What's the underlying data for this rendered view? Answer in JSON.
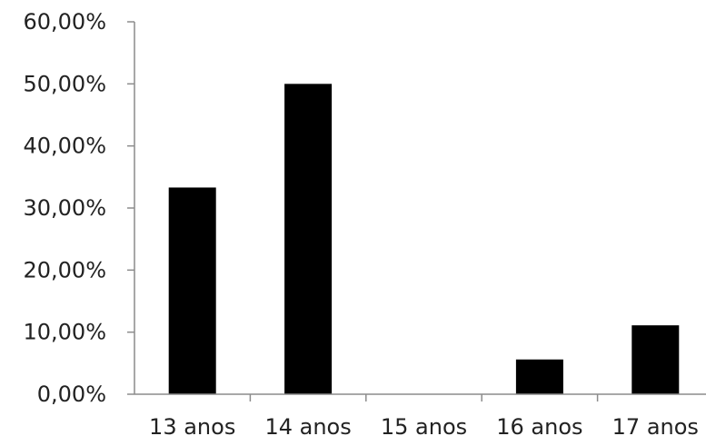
{
  "chart_data": {
    "type": "bar",
    "categories": [
      "13 anos",
      "14 anos",
      "15 anos",
      "16 anos",
      "17 anos"
    ],
    "values": [
      33.3,
      50.0,
      0.0,
      5.6,
      11.1
    ],
    "title": "",
    "xlabel": "",
    "ylabel": "",
    "ylim": [
      0,
      60
    ],
    "yticks": [
      0,
      10,
      20,
      30,
      40,
      50,
      60
    ],
    "ytick_labels": [
      "0,00%",
      "10,00%",
      "20,00%",
      "30,00%",
      "40,00%",
      "50,00%",
      "60,00%"
    ],
    "bar_color": "#000000",
    "grid": false,
    "legend": "none"
  }
}
